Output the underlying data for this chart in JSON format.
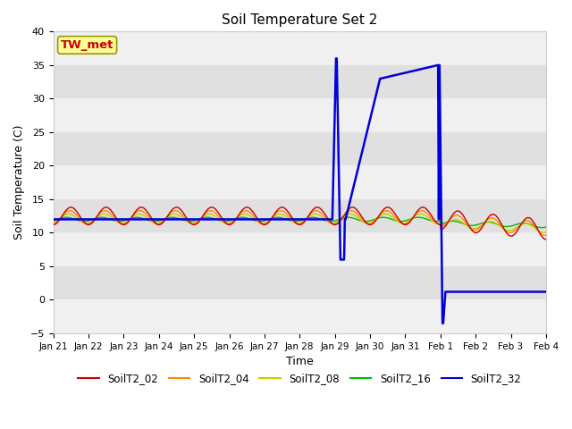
{
  "title": "Soil Temperature Set 2",
  "xlabel": "Time",
  "ylabel": "Soil Temperature (C)",
  "ylim": [
    -5,
    40
  ],
  "plot_bg_color": "#e8e8e8",
  "band_color_light": "#f0f0f0",
  "band_color_dark": "#e0e0e0",
  "series_colors": {
    "SoilT2_02": "#cc0000",
    "SoilT2_04": "#ff8800",
    "SoilT2_08": "#cccc00",
    "SoilT2_16": "#00bb00",
    "SoilT2_32": "#0000dd"
  },
  "tw_met_label": "TW_met",
  "tw_met_box_color": "#ffff99",
  "tw_met_text_color": "#cc0000",
  "tw_met_border_color": "#999900",
  "x_tick_labels": [
    "Jan 21",
    "Jan 22",
    "Jan 23",
    "Jan 24",
    "Jan 25",
    "Jan 26",
    "Jan 27",
    "Jan 28",
    "Jan 29",
    "Jan 30",
    "Jan 31",
    "Feb 1",
    "Feb 2",
    "Feb 3",
    "Feb 4"
  ],
  "x_ticks": [
    0,
    1,
    2,
    3,
    4,
    5,
    6,
    7,
    8,
    9,
    10,
    11,
    12,
    13,
    14
  ],
  "y_ticks": [
    -5,
    0,
    5,
    10,
    15,
    20,
    25,
    30,
    35,
    40
  ],
  "figsize": [
    6.4,
    4.8
  ],
  "dpi": 100
}
